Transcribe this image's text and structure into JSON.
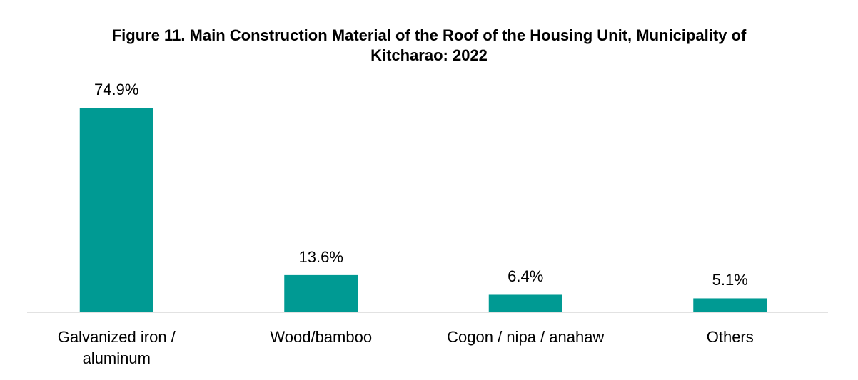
{
  "chart_data": {
    "type": "bar",
    "title": "Figure 11. Main Construction Material of the Roof of the Housing Unit, Municipality of Kitcharao: 2022",
    "categories": [
      "Galvanized iron / aluminum",
      "Wood/bamboo",
      "Cogon / nipa / anahaw",
      "Others"
    ],
    "values": [
      74.9,
      13.6,
      6.4,
      5.1
    ],
    "value_labels": [
      "74.9%",
      "13.6%",
      "6.4%",
      "5.1%"
    ],
    "color": "#009a93"
  }
}
